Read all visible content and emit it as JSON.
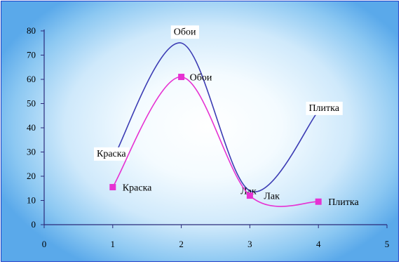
{
  "chart_data": {
    "type": "scatter",
    "title": "",
    "xlabel": "",
    "ylabel": "",
    "xlim": [
      0,
      5
    ],
    "ylim": [
      0,
      80
    ],
    "x_ticks": [
      "0",
      "1",
      "2",
      "3",
      "4",
      "5"
    ],
    "y_ticks": [
      "0",
      "10",
      "20",
      "30",
      "40",
      "50",
      "60",
      "70",
      "80"
    ],
    "grid": false,
    "legend": "none",
    "series": [
      {
        "color": "#3c3cb4",
        "smooth": true,
        "markers": false,
        "points": [
          {
            "x": 1,
            "y": 27,
            "label": "Краска"
          },
          {
            "x": 2,
            "y": 75,
            "label": "Обои"
          },
          {
            "x": 3,
            "y": 14,
            "label": "Лак"
          },
          {
            "x": 4,
            "y": 47,
            "label": "Плитка"
          }
        ]
      },
      {
        "color": "#e632d2",
        "smooth": true,
        "markers": true,
        "points": [
          {
            "x": 1,
            "y": 15.5,
            "label": "Краска"
          },
          {
            "x": 2,
            "y": 61,
            "label": "Обои"
          },
          {
            "x": 3,
            "y": 12,
            "label": "Лак"
          },
          {
            "x": 4,
            "y": 9.5,
            "label": "Плитка"
          }
        ]
      }
    ]
  }
}
